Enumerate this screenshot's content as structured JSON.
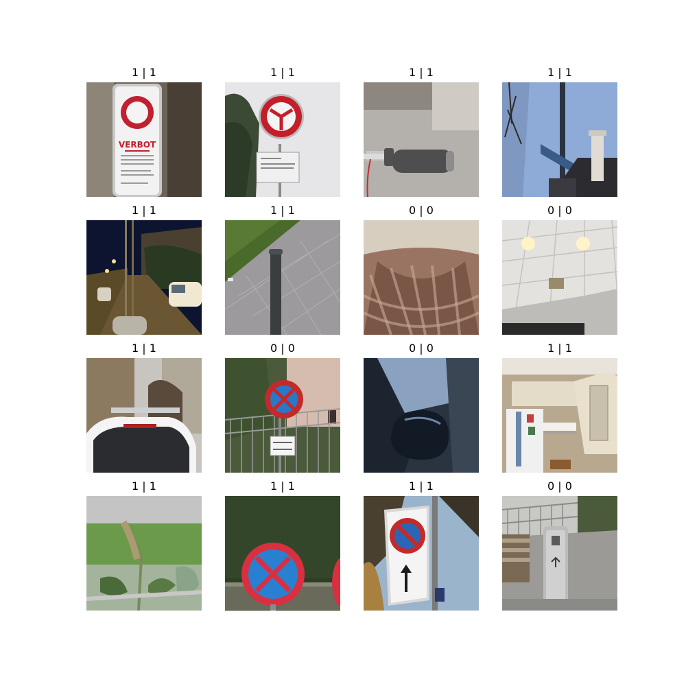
{
  "tiles": [
    {
      "title": "1 | 1",
      "scene": "verbot-sign",
      "sign_text": "VERBOT"
    },
    {
      "title": "1 | 1",
      "scene": "no-motor-sign"
    },
    {
      "title": "1 | 1",
      "scene": "bike-handlebar"
    },
    {
      "title": "1 | 1",
      "scene": "street-name-sign"
    },
    {
      "title": "1 | 1",
      "scene": "night-street"
    },
    {
      "title": "1 | 1",
      "scene": "bollard-sidewalk"
    },
    {
      "title": "0 | 0",
      "scene": "blurry-fabric"
    },
    {
      "title": "0 | 0",
      "scene": "ceiling-lights"
    },
    {
      "title": "1 | 1",
      "scene": "car-rear"
    },
    {
      "title": "0 | 0",
      "scene": "no-stopping-sign-fence"
    },
    {
      "title": "0 | 0",
      "scene": "car-side-mirror"
    },
    {
      "title": "1 | 1",
      "scene": "kitchen"
    },
    {
      "title": "1 | 1",
      "scene": "plant-closeup"
    },
    {
      "title": "1 | 1",
      "scene": "no-stopping-sign-hedge"
    },
    {
      "title": "1 | 1",
      "scene": "no-parking-sign-arrow"
    },
    {
      "title": "0 | 0",
      "scene": "trash-bin-bench"
    }
  ]
}
